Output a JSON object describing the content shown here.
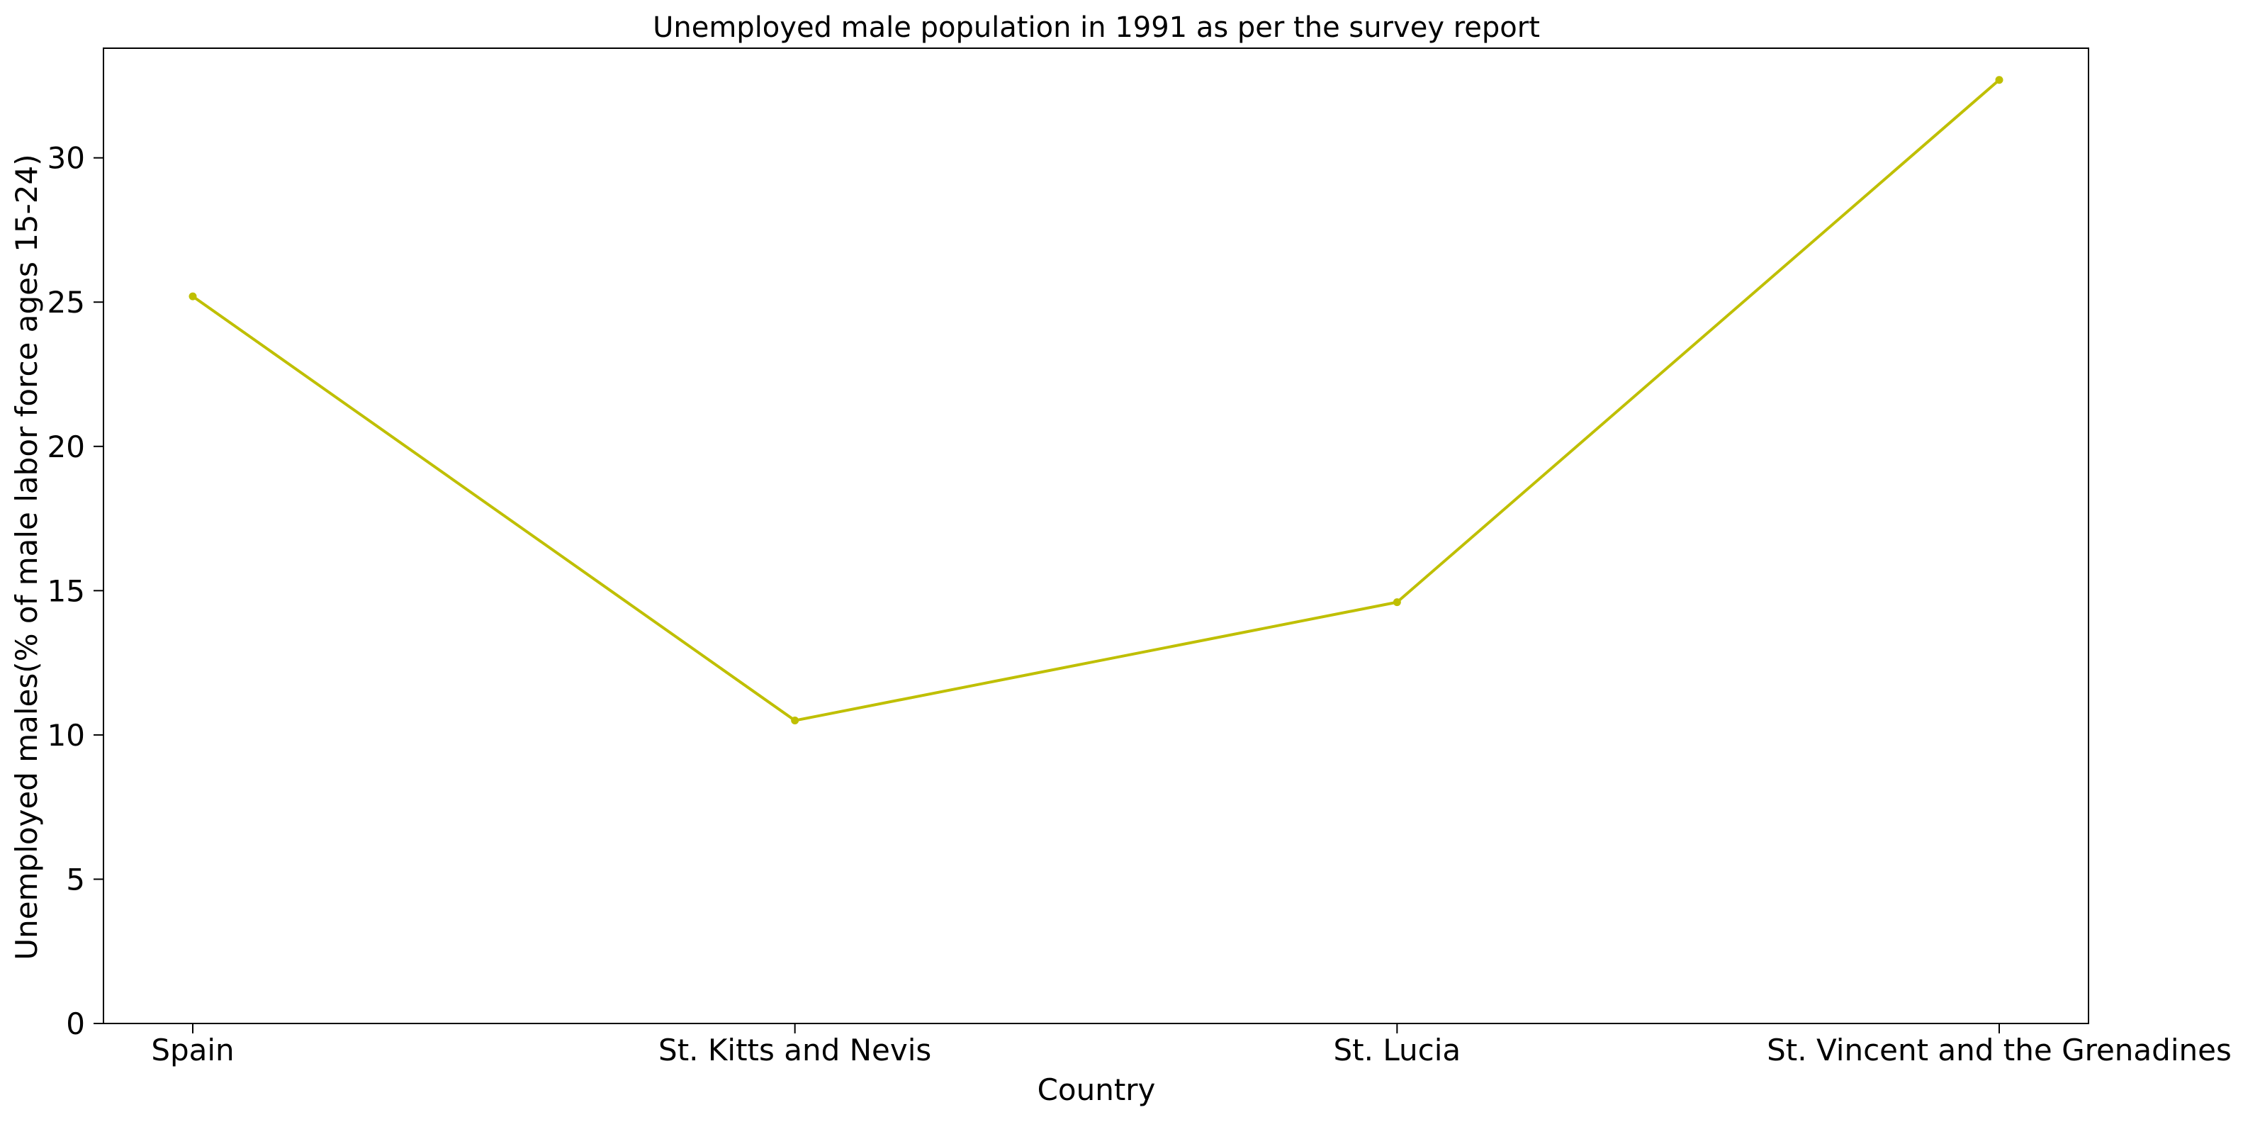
{
  "chart_data": {
    "type": "line",
    "title": "Unemployed male population in 1991 as per the survey report",
    "xlabel": "Country",
    "ylabel": "Unemployed males(% of male labor force ages 15-24)",
    "categories": [
      "Spain",
      "St. Kitts and Nevis",
      "St. Lucia",
      "St. Vincent and the Grenadines"
    ],
    "series": [
      {
        "values": [
          25.2,
          10.5,
          14.6,
          32.7
        ],
        "color": "#bfbf00"
      }
    ],
    "ylim": [
      0,
      33.8
    ],
    "yticks": [
      0,
      5,
      10,
      15,
      20,
      25,
      30
    ],
    "grid": false,
    "markers": true
  }
}
